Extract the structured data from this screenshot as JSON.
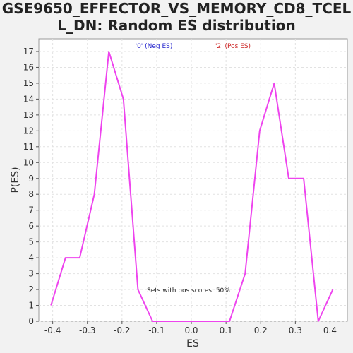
{
  "chart_data": {
    "type": "line",
    "title_lines": [
      "GSE9650_EFFECTOR_VS_MEMORY_CD8_TCEL",
      "L_DN: Random ES distribution"
    ],
    "xlabel": "ES",
    "ylabel": "P(ES)",
    "xlim": [
      -0.44,
      0.45
    ],
    "ylim": [
      0,
      17.8
    ],
    "x_ticks": [
      -0.4,
      -0.3,
      -0.2,
      -0.1,
      0.0,
      0.1,
      0.2,
      0.3,
      0.4
    ],
    "x_tick_labels": [
      "-0.4",
      "-0.3",
      "-0.2",
      "-0.1",
      "0.0",
      "0.1",
      "0.2",
      "0.3",
      "0.4"
    ],
    "y_ticks": [
      0,
      1,
      2,
      3,
      4,
      5,
      6,
      7,
      8,
      9,
      10,
      11,
      12,
      13,
      14,
      15,
      16,
      17
    ],
    "y_tick_labels": [
      "0",
      "1",
      "2",
      "3",
      "4",
      "5",
      "6",
      "7",
      "8",
      "9",
      "10",
      "11",
      "12",
      "13",
      "14",
      "15",
      "16",
      "17"
    ],
    "grid": true,
    "series": [
      {
        "color": "#ee44ee",
        "x": [
          -0.405,
          -0.363,
          -0.322,
          -0.28,
          -0.238,
          -0.196,
          -0.154,
          -0.112,
          -0.07,
          -0.028,
          0.014,
          0.056,
          0.098,
          0.11,
          0.155,
          0.197,
          0.239,
          0.281,
          0.324,
          0.366,
          0.408
        ],
        "y": [
          1,
          4,
          4,
          8,
          17,
          14,
          2,
          0,
          0,
          0,
          0,
          0,
          0,
          0,
          3,
          12,
          15,
          9,
          9,
          0,
          2
        ]
      }
    ],
    "legend": [
      {
        "label": "'0' (Neg ES)",
        "color": "#2222cc"
      },
      {
        "label": "'2' (Pos ES)",
        "color": "#cc2222"
      }
    ],
    "annotation": "Sets with pos scores: 50%"
  }
}
